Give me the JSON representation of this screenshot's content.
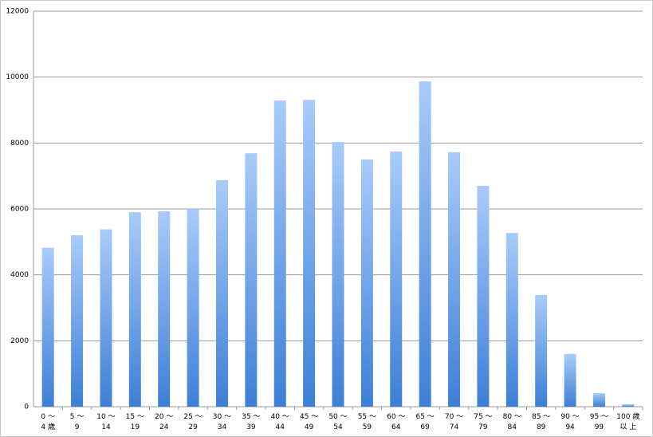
{
  "chart_data": {
    "type": "bar",
    "categories": [
      "0 〜\n4 歳",
      "5 〜\n9",
      "10 〜\n14",
      "15 〜\n19",
      "20 〜\n24",
      "25 〜\n29",
      "30 〜\n34",
      "35 〜\n39",
      "40 〜\n44",
      "45 〜\n49",
      "50 〜\n54",
      "55 〜\n59",
      "60 〜\n64",
      "65 〜\n69",
      "70 〜\n74",
      "75 〜\n79",
      "80 〜\n84",
      "85 〜\n89",
      "90 〜\n94",
      "95 〜\n99",
      "100 歳\n以 上"
    ],
    "values": [
      4820,
      5200,
      5380,
      5900,
      5930,
      6000,
      6870,
      7690,
      9290,
      9310,
      8030,
      7500,
      7740,
      9870,
      7720,
      6700,
      5270,
      3390,
      1600,
      410,
      70
    ],
    "color": "#3d7fd6",
    "ylim": [
      0,
      12000
    ],
    "yticks": [
      0,
      2000,
      4000,
      6000,
      8000,
      10000,
      12000
    ],
    "grid": true
  }
}
